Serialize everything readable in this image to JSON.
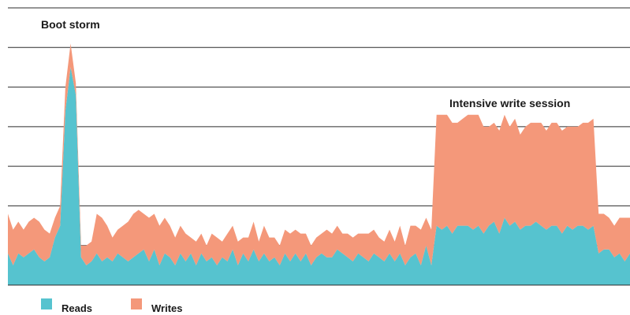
{
  "chart_data": {
    "type": "area",
    "stacked": true,
    "title": "",
    "xlabel": "",
    "ylabel": "",
    "ylim": [
      0,
      7
    ],
    "grid": true,
    "legend_position": "bottom-left",
    "x": [
      0,
      1,
      2,
      3,
      4,
      5,
      6,
      7,
      8,
      9,
      10,
      11,
      12,
      13,
      14,
      15,
      16,
      17,
      18,
      19,
      20,
      21,
      22,
      23,
      24,
      25,
      26,
      27,
      28,
      29,
      30,
      31,
      32,
      33,
      34,
      35,
      36,
      37,
      38,
      39,
      40,
      41,
      42,
      43,
      44,
      45,
      46,
      47,
      48,
      49,
      50,
      51,
      52,
      53,
      54,
      55,
      56,
      57,
      58,
      59,
      60,
      61,
      62,
      63,
      64,
      65,
      66,
      67,
      68,
      69,
      70,
      71,
      72,
      73,
      74,
      75,
      76,
      77,
      78,
      79,
      80,
      81,
      82,
      83,
      84,
      85,
      86,
      87,
      88,
      89,
      90,
      91,
      92,
      93,
      94,
      95,
      96,
      97,
      98,
      99,
      100,
      101,
      102,
      103,
      104,
      105,
      106,
      107,
      108,
      109,
      110,
      111,
      112,
      113,
      114,
      115,
      116,
      117,
      118,
      119
    ],
    "series": [
      {
        "name": "Reads",
        "color": "#56c3cf",
        "values": [
          0.8,
          0.5,
          0.8,
          0.7,
          0.8,
          0.9,
          0.7,
          0.6,
          0.7,
          1.2,
          1.5,
          4.4,
          5.5,
          4.8,
          0.7,
          0.5,
          0.6,
          0.8,
          0.6,
          0.7,
          0.6,
          0.8,
          0.7,
          0.6,
          0.7,
          0.8,
          0.9,
          0.6,
          0.9,
          0.5,
          0.8,
          0.7,
          0.5,
          0.8,
          0.6,
          0.8,
          0.5,
          0.8,
          0.6,
          0.7,
          0.5,
          0.7,
          0.6,
          0.9,
          0.5,
          0.8,
          0.6,
          0.9,
          0.6,
          0.8,
          0.6,
          0.7,
          0.5,
          0.8,
          0.6,
          0.8,
          0.6,
          0.8,
          0.5,
          0.7,
          0.8,
          0.7,
          0.7,
          0.9,
          0.8,
          0.7,
          0.6,
          0.8,
          0.7,
          0.6,
          0.8,
          0.7,
          0.6,
          0.8,
          0.6,
          0.8,
          0.5,
          0.7,
          0.8,
          0.5,
          1.0,
          0.5,
          1.5,
          1.4,
          1.5,
          1.3,
          1.5,
          1.5,
          1.5,
          1.4,
          1.5,
          1.3,
          1.5,
          1.6,
          1.3,
          1.7,
          1.5,
          1.6,
          1.4,
          1.5,
          1.5,
          1.6,
          1.5,
          1.4,
          1.5,
          1.5,
          1.3,
          1.5,
          1.4,
          1.5,
          1.5,
          1.4,
          1.5,
          0.8,
          0.9,
          0.9,
          0.7,
          0.8,
          0.6,
          0.8
        ]
      },
      {
        "name": "Writes",
        "color": "#f4987a",
        "values": [
          1.0,
          0.9,
          0.8,
          0.7,
          0.8,
          0.8,
          0.9,
          0.8,
          0.6,
          0.5,
          0.5,
          0.6,
          0.6,
          0.3,
          0.3,
          0.5,
          0.5,
          1.0,
          1.1,
          0.8,
          0.6,
          0.6,
          0.8,
          1.0,
          1.1,
          1.1,
          0.9,
          1.1,
          0.9,
          1.0,
          0.9,
          0.8,
          0.7,
          0.7,
          0.7,
          0.4,
          0.6,
          0.5,
          0.4,
          0.6,
          0.7,
          0.4,
          0.7,
          0.6,
          0.6,
          0.4,
          0.6,
          0.7,
          0.5,
          0.7,
          0.6,
          0.5,
          0.5,
          0.6,
          0.7,
          0.6,
          0.7,
          0.5,
          0.5,
          0.5,
          0.5,
          0.7,
          0.6,
          0.6,
          0.5,
          0.6,
          0.6,
          0.5,
          0.6,
          0.7,
          0.6,
          0.5,
          0.5,
          0.6,
          0.5,
          0.7,
          0.5,
          0.8,
          0.7,
          0.9,
          0.7,
          0.9,
          2.8,
          2.9,
          2.8,
          2.8,
          2.6,
          2.7,
          2.8,
          2.9,
          2.8,
          2.7,
          2.5,
          2.5,
          2.6,
          2.6,
          2.5,
          2.6,
          2.4,
          2.5,
          2.6,
          2.5,
          2.6,
          2.5,
          2.6,
          2.6,
          2.6,
          2.5,
          2.6,
          2.5,
          2.6,
          2.7,
          2.7,
          1.0,
          0.9,
          0.8,
          0.8,
          0.9,
          1.1,
          0.9
        ]
      }
    ],
    "annotations": [
      {
        "text": "Boot storm"
      },
      {
        "text": "Intensive write session"
      }
    ]
  }
}
